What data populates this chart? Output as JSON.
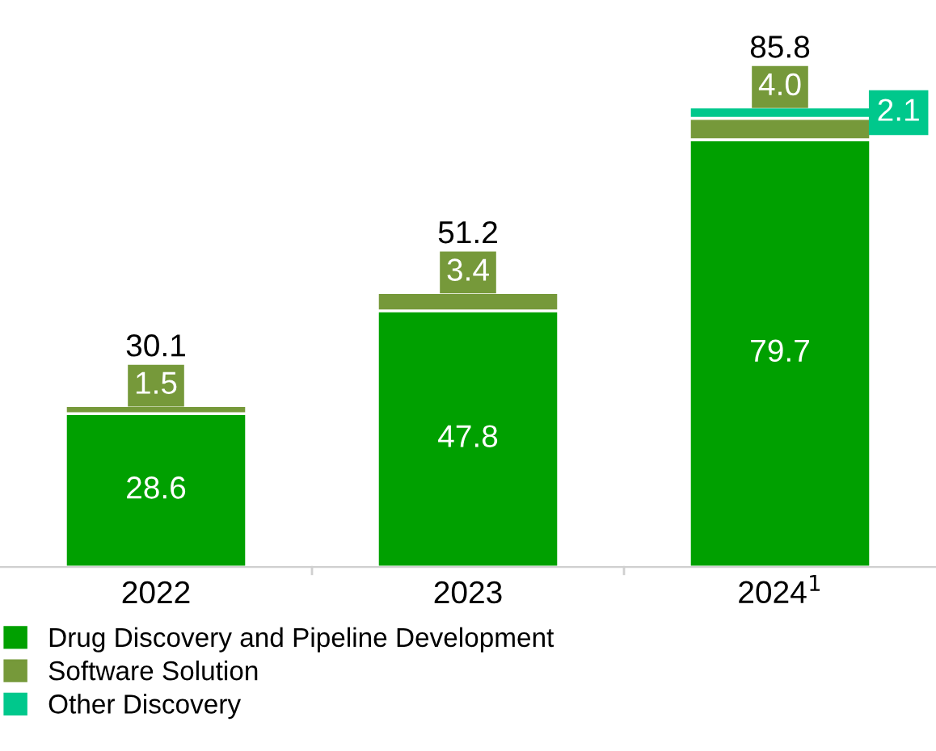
{
  "chart_data": {
    "type": "bar",
    "stacked": true,
    "categories": [
      "2022",
      "2023",
      "2024$^{1}$"
    ],
    "series": [
      {
        "name": "Drug Discovery and Pipeline Development",
        "color": "#00a000",
        "values": [
          28.6,
          47.8,
          79.7
        ],
        "value_labels": [
          "28.6",
          "47.8",
          "79.7"
        ]
      },
      {
        "name": "Software Solution",
        "color": "#76993a",
        "values": [
          1.5,
          3.4,
          4.0
        ],
        "value_labels": [
          "1.5",
          "3.4",
          "4.0"
        ]
      },
      {
        "name": "Other Discovery",
        "color": "#00c88c",
        "values": [
          null,
          null,
          2.1
        ],
        "value_labels": [
          null,
          null,
          "2.1"
        ]
      }
    ],
    "data_labels": true,
    "totals": [
      "30.1",
      "51.2",
      "85.8"
    ],
    "legend": "bottom left"
  }
}
